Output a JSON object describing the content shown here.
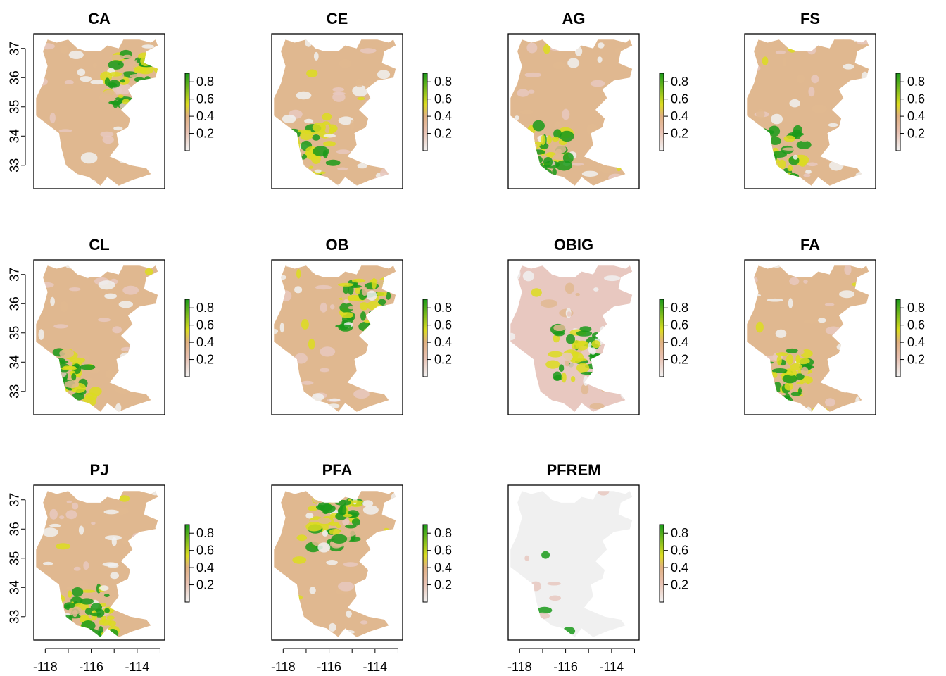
{
  "chart_data": {
    "type": "heatmap",
    "layout": {
      "rows": 3,
      "cols": 4
    },
    "xlim": [
      -118.5,
      -112.8
    ],
    "ylim": [
      32.2,
      37.5
    ],
    "x_ticks": [
      -118,
      -117,
      -116,
      -115,
      -114,
      -113
    ],
    "x_tick_labels": [
      "-118",
      "-116",
      "-114"
    ],
    "y_ticks": [
      33,
      34,
      35,
      36,
      37
    ],
    "y_tick_labels": [
      "33",
      "34",
      "35",
      "36",
      "37"
    ],
    "legend_ticks": [
      "0.2",
      "0.4",
      "0.6",
      "0.8"
    ],
    "legend_range": [
      0,
      0.9
    ],
    "colors": {
      "low": "#f0f0f0",
      "pink": "#e8c8c0",
      "tan": "#e0b890",
      "yellow": "#dcdc20",
      "high": "#1a9a1a",
      "frame": "#000000",
      "na": "#ffffff"
    },
    "panels": [
      {
        "title": "CA",
        "mean_level": 0.35,
        "high_zone": "northeast"
      },
      {
        "title": "CE",
        "mean_level": 0.4,
        "high_zone": "southwest"
      },
      {
        "title": "AG",
        "mean_level": 0.3,
        "high_zone": "southwest"
      },
      {
        "title": "FS",
        "mean_level": 0.3,
        "high_zone": "southwest"
      },
      {
        "title": "CL",
        "mean_level": 0.4,
        "high_zone": "southwest"
      },
      {
        "title": "OB",
        "mean_level": 0.45,
        "high_zone": "northeast"
      },
      {
        "title": "OBIG",
        "mean_level": 0.25,
        "high_zone": "center"
      },
      {
        "title": "FA",
        "mean_level": 0.35,
        "high_zone": "southwest"
      },
      {
        "title": "PJ",
        "mean_level": 0.45,
        "high_zone": "south"
      },
      {
        "title": "PFA",
        "mean_level": 0.35,
        "high_zone": "north"
      },
      {
        "title": "PFREM",
        "mean_level": 0.05,
        "high_zone": "southwest"
      }
    ]
  }
}
